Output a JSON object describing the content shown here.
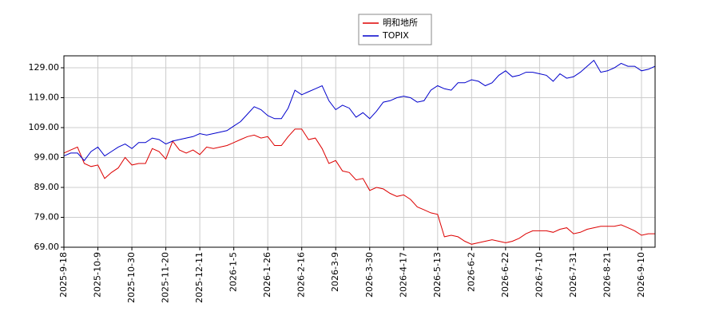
{
  "chart_data": {
    "type": "line",
    "categories": [
      "2025-9-18",
      null,
      null,
      null,
      null,
      "2025-10-9",
      null,
      null,
      null,
      null,
      "2025-10-30",
      null,
      null,
      null,
      null,
      "2025-11-20",
      null,
      null,
      null,
      null,
      "2025-12-11",
      null,
      null,
      null,
      null,
      "2026-1-5",
      null,
      null,
      null,
      null,
      "2026-1-26",
      null,
      null,
      null,
      null,
      "2026-2-16",
      null,
      null,
      null,
      null,
      "2026-3-9",
      null,
      null,
      null,
      null,
      "2026-3-30",
      null,
      null,
      null,
      null,
      "2026-4-17",
      null,
      null,
      null,
      null,
      "2026-5-13",
      null,
      null,
      null,
      null,
      "2026-6-2",
      null,
      null,
      null,
      null,
      "2026-6-22",
      null,
      null,
      null,
      null,
      "2026-7-10",
      null,
      null,
      null,
      null,
      "2026-7-31",
      null,
      null,
      null,
      null,
      "2026-8-21",
      null,
      null,
      null,
      null,
      "2026-9-10",
      null,
      null
    ],
    "series": [
      {
        "name": "明和地所",
        "color": "#dd0000",
        "values": [
          100.5,
          101.5,
          102.5,
          97,
          96,
          96.5,
          92,
          94,
          95.5,
          99,
          96.5,
          97,
          97,
          102,
          101,
          98.5,
          104.5,
          101.5,
          100.5,
          101.5,
          100,
          102.5,
          102,
          102.5,
          103,
          104,
          105,
          106,
          106.5,
          105.5,
          106,
          103,
          103,
          106,
          108.5,
          108.5,
          105,
          105.5,
          102,
          97,
          98,
          94.5,
          94,
          91.5,
          92,
          88,
          89,
          88.5,
          87,
          86,
          86.5,
          85,
          82.5,
          81.5,
          80.5,
          80,
          72.5,
          73,
          72.5,
          71,
          70,
          70.5,
          71,
          71.5,
          71,
          70.5,
          71,
          72,
          73.5,
          74.5,
          74.5,
          74.5,
          74,
          75,
          75.5,
          73.5,
          74,
          75,
          75.5,
          76,
          76,
          76,
          76.5,
          75.5,
          74.5,
          73,
          73.5,
          73.5
        ]
      },
      {
        "name": "TOPIX",
        "color": "#0000cc",
        "values": [
          99.5,
          100.5,
          100.5,
          98,
          101,
          102.5,
          99.5,
          101,
          102.5,
          103.5,
          102,
          104,
          104,
          105.5,
          105,
          103.5,
          104.5,
          105,
          105.5,
          106,
          107,
          106.5,
          107,
          107.5,
          108,
          109.5,
          111,
          113.5,
          116,
          115,
          113,
          112,
          112,
          115.5,
          121.5,
          120,
          121,
          122,
          123,
          118,
          115,
          116.5,
          115.5,
          112.5,
          114,
          112,
          114.5,
          117.5,
          118,
          119,
          119.5,
          119,
          117.5,
          118,
          121.5,
          123,
          122,
          121.5,
          124,
          124,
          125,
          124.5,
          123,
          124,
          126.5,
          128,
          126,
          126.5,
          127.5,
          127.5,
          127,
          126.5,
          124.5,
          127,
          125.5,
          126,
          127.5,
          129.5,
          131.5,
          127.5,
          128,
          129,
          130.5,
          129.5,
          129.5,
          128,
          128.5,
          129.5
        ]
      }
    ],
    "ylim": [
      69,
      133
    ],
    "yticks": [
      {
        "value": 69,
        "label": "69.00"
      },
      {
        "value": 79,
        "label": "79.00"
      },
      {
        "value": 89,
        "label": "89.00"
      },
      {
        "value": 99,
        "label": "99.00"
      },
      {
        "value": 109,
        "label": "109.00"
      },
      {
        "value": 119,
        "label": "119.00"
      },
      {
        "value": 129,
        "label": "129.00"
      }
    ],
    "grid": true,
    "legend": "top"
  }
}
